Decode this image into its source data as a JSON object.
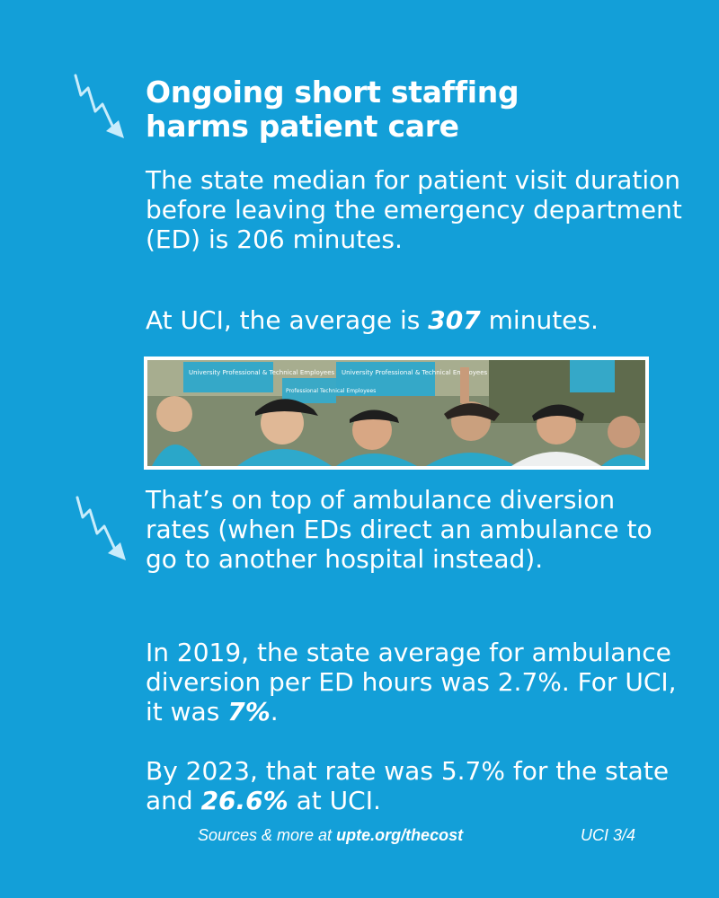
{
  "heading": {
    "line1": "Ongoing short staffing",
    "line2": "harms patient care"
  },
  "paragraphs": {
    "p1": "The state median for patient visit duration before leaving the emergency department (ED) is 206 minutes.",
    "p2_prefix": "At UCI, the average is ",
    "p2_bold": "307",
    "p2_suffix": " minutes.",
    "p3": "That’s on top of ambulance diversion rates (when EDs direct an ambulance to go to another hospital instead).",
    "p4_prefix": "In 2019, the state average for ambulance diversion per ED hours was 2.7%. For UCI, it was ",
    "p4_bold": "7%",
    "p4_suffix": ".",
    "p5_prefix": "By 2023, that rate was 5.7% for the state and ",
    "p5_bold": "26.6%",
    "p5_suffix": " at UCI."
  },
  "photo": {
    "sign_text_1": "University Professional & Technical Employees",
    "sign_text_2": "University Professional & Technical Employees",
    "sign_text_3": "Professional Technical Employees"
  },
  "footer": {
    "source_prefix": "Sources & more at ",
    "source_link": "upte.org/thecost",
    "page_label": "UCI 3/4"
  },
  "colors": {
    "background": "#139fd8",
    "text": "#ffffff",
    "arrow": "#c9ecfb"
  },
  "icons": {
    "arrow1": "zigzag-down-arrow-icon",
    "arrow2": "zigzag-down-arrow-icon"
  }
}
